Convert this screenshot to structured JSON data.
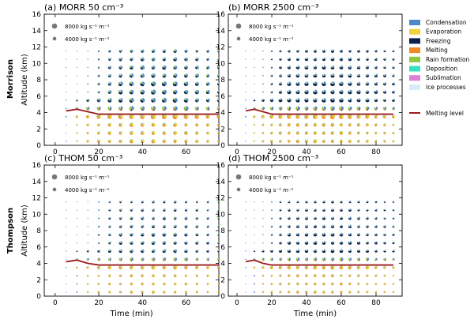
{
  "figure": {
    "row_labels": [
      "Morrison",
      "Thompson"
    ],
    "legend": {
      "items": [
        {
          "name": "Condensation",
          "color": "#4c88c8"
        },
        {
          "name": "Evaporation",
          "color": "#f2d13a"
        },
        {
          "name": "Freezing",
          "color": "#0b1f4f"
        },
        {
          "name": "Melting",
          "color": "#f08a24"
        },
        {
          "name": "Rain formation",
          "color": "#8dc63f"
        },
        {
          "name": "Deposition",
          "color": "#36e0c2"
        },
        {
          "name": "Sublimation",
          "color": "#de7fd6"
        },
        {
          "name": "Ice processes",
          "color": "#d6ecf6"
        }
      ],
      "line_item": {
        "name": "Melting level",
        "color": "#9e1b1b"
      }
    },
    "size_key": {
      "large": {
        "value": 8000,
        "label": "8000 kg s⁻¹ m⁻¹"
      },
      "small": {
        "value": 4000,
        "label": "4000 kg s⁻¹ m⁻¹"
      }
    }
  },
  "chart_data": [
    {
      "type": "scatter",
      "subtype": "pie-glyph grid",
      "title": "(a)  MORR 50 cm⁻³",
      "xlabel": "",
      "ylabel": "Altitude (km)",
      "xlim": [
        -5,
        75
      ],
      "ylim": [
        0,
        16
      ],
      "xticks": [
        0,
        20,
        40,
        60
      ],
      "yticks": [
        0,
        2,
        4,
        6,
        8,
        10,
        12,
        14,
        16
      ],
      "profile": {
        "x_range": [
          5,
          75
        ],
        "upper_alt": 11.5,
        "peak_time": 45,
        "peak_size": 1.0,
        "glaciated_fraction": 0.45
      },
      "melting_level": {
        "x": [
          5,
          10,
          15,
          20,
          30,
          40,
          50,
          60,
          75
        ],
        "y": [
          4.2,
          4.4,
          4.1,
          3.8,
          3.8,
          3.8,
          3.8,
          3.8,
          3.8
        ]
      }
    },
    {
      "type": "scatter",
      "subtype": "pie-glyph grid",
      "title": "(b)  MORR 2500 cm⁻³",
      "xlabel": "",
      "ylabel": "",
      "xlim": [
        -5,
        95
      ],
      "ylim": [
        0,
        16
      ],
      "xticks": [
        0,
        20,
        40,
        60,
        80
      ],
      "yticks": [
        0,
        2,
        4,
        6,
        8,
        10,
        12,
        14,
        16
      ],
      "profile": {
        "x_range": [
          5,
          90
        ],
        "upper_alt": 11.5,
        "peak_time": 50,
        "peak_size": 0.85,
        "glaciated_fraction": 0.75
      },
      "melting_level": {
        "x": [
          5,
          10,
          15,
          20,
          30,
          50,
          70,
          90
        ],
        "y": [
          4.2,
          4.4,
          4.1,
          3.8,
          3.8,
          3.8,
          3.8,
          3.8
        ]
      }
    },
    {
      "type": "scatter",
      "subtype": "pie-glyph grid",
      "title": "(c)  THOM 50 cm⁻³",
      "xlabel": "Time (min)",
      "ylabel": "Altitude (km)",
      "xlim": [
        -5,
        75
      ],
      "ylim": [
        0,
        16
      ],
      "xticks": [
        0,
        20,
        40,
        60
      ],
      "yticks": [
        0,
        2,
        4,
        6,
        8,
        10,
        12,
        14,
        16
      ],
      "profile": {
        "x_range": [
          5,
          75
        ],
        "upper_alt": 11.5,
        "peak_time": 45,
        "peak_size": 0.6,
        "glaciated_fraction": 0.55
      },
      "melting_level": {
        "x": [
          5,
          10,
          15,
          20,
          30,
          40,
          50,
          60,
          75
        ],
        "y": [
          4.2,
          4.4,
          4.0,
          3.8,
          3.8,
          3.8,
          3.8,
          3.8,
          3.8
        ]
      }
    },
    {
      "type": "scatter",
      "subtype": "pie-glyph grid",
      "title": "(d)  THOM 2500 cm⁻³",
      "xlabel": "Time (min)",
      "ylabel": "",
      "xlim": [
        -5,
        95
      ],
      "ylim": [
        0,
        16
      ],
      "xticks": [
        0,
        20,
        40,
        60,
        80
      ],
      "yticks": [
        0,
        2,
        4,
        6,
        8,
        10,
        12,
        14,
        16
      ],
      "profile": {
        "x_range": [
          5,
          90
        ],
        "upper_alt": 11.5,
        "peak_time": 50,
        "peak_size": 0.6,
        "glaciated_fraction": 0.8
      },
      "melting_level": {
        "x": [
          5,
          10,
          15,
          20,
          30,
          50,
          70,
          90
        ],
        "y": [
          4.2,
          4.4,
          4.0,
          3.8,
          3.8,
          3.8,
          3.8,
          3.8
        ]
      }
    }
  ]
}
